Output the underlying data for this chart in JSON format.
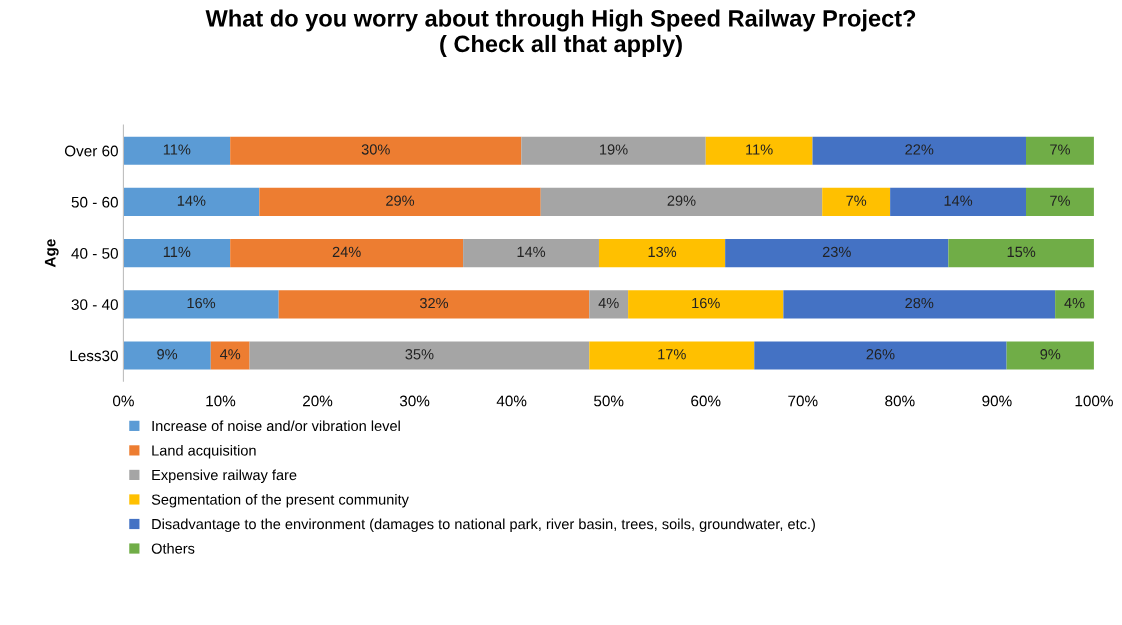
{
  "chart_data": {
    "type": "bar",
    "orientation": "horizontal",
    "stacked": true,
    "title": "What do you worry about through High Speed Railway Project?\n( Check all that apply)",
    "ylabel": "Age",
    "categories": [
      "Over 60",
      "50 - 60",
      "40 - 50",
      "30 - 40",
      "Less30"
    ],
    "series": [
      {
        "name": "Increase of noise and/or vibration level",
        "color": "#5b9bd5",
        "values": [
          11,
          14,
          11,
          16,
          9
        ],
        "value_labels": [
          "11%",
          "14%",
          "11%",
          "16%",
          "9%"
        ]
      },
      {
        "name": "Land acquisition",
        "color": "#ed7d31",
        "values": [
          30,
          29,
          24,
          32,
          4
        ],
        "value_labels": [
          "30%",
          "29%",
          "24%",
          "32%",
          "4%"
        ]
      },
      {
        "name": "Expensive railway fare",
        "color": "#a5a5a5",
        "values": [
          19,
          29,
          14,
          4,
          35
        ],
        "value_labels": [
          "19%",
          "29%",
          "14%",
          "4%",
          "35%"
        ]
      },
      {
        "name": "Segmentation of the present community",
        "color": "#ffc000",
        "values": [
          11,
          7,
          13,
          16,
          17
        ],
        "value_labels": [
          "11%",
          "7%",
          "13%",
          "16%",
          "17%"
        ]
      },
      {
        "name": "Disadvantage to the environment (damages to national park, river basin, trees, soils, groundwater, etc.)",
        "color": "#4472c4",
        "values": [
          22,
          14,
          23,
          28,
          26
        ],
        "value_labels": [
          "22%",
          "14%",
          "23%",
          "28%",
          "26%"
        ]
      },
      {
        "name": "Others",
        "color": "#70ad47",
        "values": [
          7,
          7,
          15,
          4,
          9
        ],
        "value_labels": [
          "7%",
          "7%",
          "15%",
          "4%",
          "9%"
        ]
      }
    ],
    "xlim": [
      0,
      100
    ],
    "xticks": [
      {
        "value": 0,
        "label": "0%"
      },
      {
        "value": 10,
        "label": "10%"
      },
      {
        "value": 20,
        "label": "20%"
      },
      {
        "value": 30,
        "label": "30%"
      },
      {
        "value": 40,
        "label": "40%"
      },
      {
        "value": 50,
        "label": "50%"
      },
      {
        "value": 60,
        "label": "60%"
      },
      {
        "value": 70,
        "label": "70%"
      },
      {
        "value": 80,
        "label": "80%"
      },
      {
        "value": 90,
        "label": "90%"
      },
      {
        "value": 100,
        "label": "100%"
      }
    ],
    "legend": "bottom",
    "grid": false
  }
}
